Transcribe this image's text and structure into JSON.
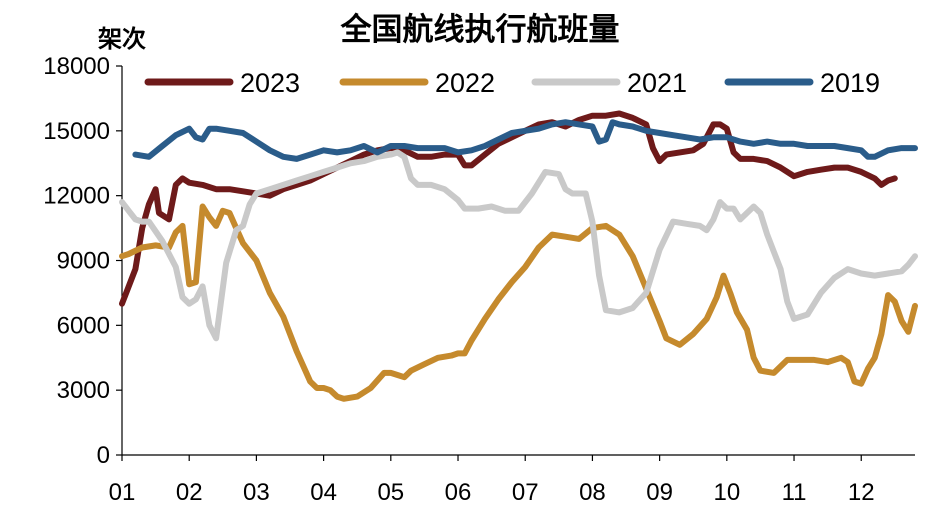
{
  "chart_data": {
    "type": "line",
    "title": "全国航线执行航班量",
    "ylabel": "架次",
    "xlabel": "",
    "ylim": [
      0,
      18000
    ],
    "yticks": [
      "0",
      "3000",
      "6000",
      "9000",
      "12000",
      "15000",
      "18000"
    ],
    "xlim": [
      1,
      12.8
    ],
    "xticks": [
      "01",
      "02",
      "03",
      "04",
      "05",
      "06",
      "07",
      "08",
      "09",
      "10",
      "11",
      "12"
    ],
    "grid": false,
    "legend_position": "top",
    "series": [
      {
        "name": "2023",
        "color": "#6e1a1a",
        "points": [
          [
            1.0,
            7000
          ],
          [
            1.1,
            7800
          ],
          [
            1.2,
            8600
          ],
          [
            1.3,
            10500
          ],
          [
            1.4,
            11600
          ],
          [
            1.5,
            12300
          ],
          [
            1.55,
            11200
          ],
          [
            1.7,
            10900
          ],
          [
            1.8,
            12500
          ],
          [
            1.9,
            12800
          ],
          [
            2.0,
            12600
          ],
          [
            2.2,
            12500
          ],
          [
            2.4,
            12300
          ],
          [
            2.6,
            12300
          ],
          [
            2.8,
            12200
          ],
          [
            3.0,
            12100
          ],
          [
            3.2,
            12000
          ],
          [
            3.4,
            12300
          ],
          [
            3.6,
            12500
          ],
          [
            3.8,
            12700
          ],
          [
            4.0,
            13000
          ],
          [
            4.2,
            13300
          ],
          [
            4.4,
            13600
          ],
          [
            4.6,
            13900
          ],
          [
            4.8,
            14100
          ],
          [
            5.0,
            14200
          ],
          [
            5.2,
            14100
          ],
          [
            5.4,
            13800
          ],
          [
            5.6,
            13800
          ],
          [
            5.8,
            13900
          ],
          [
            6.0,
            13900
          ],
          [
            6.1,
            13400
          ],
          [
            6.2,
            13400
          ],
          [
            6.4,
            13900
          ],
          [
            6.6,
            14400
          ],
          [
            6.8,
            14700
          ],
          [
            7.0,
            15000
          ],
          [
            7.2,
            15300
          ],
          [
            7.4,
            15400
          ],
          [
            7.6,
            15200
          ],
          [
            7.8,
            15500
          ],
          [
            8.0,
            15700
          ],
          [
            8.2,
            15700
          ],
          [
            8.4,
            15800
          ],
          [
            8.6,
            15600
          ],
          [
            8.8,
            15300
          ],
          [
            8.9,
            14200
          ],
          [
            9.0,
            13600
          ],
          [
            9.1,
            13900
          ],
          [
            9.3,
            14000
          ],
          [
            9.5,
            14100
          ],
          [
            9.65,
            14400
          ],
          [
            9.8,
            15300
          ],
          [
            9.9,
            15300
          ],
          [
            10.0,
            15100
          ],
          [
            10.1,
            14000
          ],
          [
            10.2,
            13700
          ],
          [
            10.4,
            13700
          ],
          [
            10.6,
            13600
          ],
          [
            10.8,
            13300
          ],
          [
            11.0,
            12900
          ],
          [
            11.2,
            13100
          ],
          [
            11.4,
            13200
          ],
          [
            11.6,
            13300
          ],
          [
            11.8,
            13300
          ],
          [
            12.0,
            13100
          ],
          [
            12.2,
            12800
          ],
          [
            12.3,
            12500
          ],
          [
            12.4,
            12700
          ],
          [
            12.5,
            12800
          ]
        ]
      },
      {
        "name": "2022",
        "color": "#c58a2d",
        "points": [
          [
            1.0,
            9200
          ],
          [
            1.1,
            9300
          ],
          [
            1.3,
            9600
          ],
          [
            1.5,
            9700
          ],
          [
            1.7,
            9600
          ],
          [
            1.8,
            10300
          ],
          [
            1.9,
            10600
          ],
          [
            2.0,
            7900
          ],
          [
            2.1,
            8000
          ],
          [
            2.2,
            11500
          ],
          [
            2.3,
            11000
          ],
          [
            2.4,
            10600
          ],
          [
            2.5,
            11300
          ],
          [
            2.6,
            11200
          ],
          [
            2.7,
            10500
          ],
          [
            2.8,
            9800
          ],
          [
            3.0,
            9000
          ],
          [
            3.2,
            7500
          ],
          [
            3.4,
            6400
          ],
          [
            3.6,
            4800
          ],
          [
            3.8,
            3400
          ],
          [
            3.9,
            3100
          ],
          [
            4.0,
            3100
          ],
          [
            4.1,
            3000
          ],
          [
            4.2,
            2700
          ],
          [
            4.3,
            2600
          ],
          [
            4.5,
            2700
          ],
          [
            4.7,
            3100
          ],
          [
            4.9,
            3800
          ],
          [
            5.0,
            3800
          ],
          [
            5.1,
            3700
          ],
          [
            5.2,
            3600
          ],
          [
            5.3,
            3900
          ],
          [
            5.5,
            4200
          ],
          [
            5.7,
            4500
          ],
          [
            5.9,
            4600
          ],
          [
            6.0,
            4700
          ],
          [
            6.1,
            4700
          ],
          [
            6.2,
            5300
          ],
          [
            6.4,
            6300
          ],
          [
            6.6,
            7200
          ],
          [
            6.8,
            8000
          ],
          [
            7.0,
            8700
          ],
          [
            7.2,
            9600
          ],
          [
            7.4,
            10200
          ],
          [
            7.6,
            10100
          ],
          [
            7.8,
            10000
          ],
          [
            8.0,
            10500
          ],
          [
            8.2,
            10600
          ],
          [
            8.4,
            10200
          ],
          [
            8.6,
            9200
          ],
          [
            8.8,
            7700
          ],
          [
            9.0,
            6200
          ],
          [
            9.1,
            5400
          ],
          [
            9.3,
            5100
          ],
          [
            9.5,
            5600
          ],
          [
            9.7,
            6300
          ],
          [
            9.85,
            7300
          ],
          [
            9.95,
            8300
          ],
          [
            10.05,
            7500
          ],
          [
            10.15,
            6600
          ],
          [
            10.3,
            5800
          ],
          [
            10.4,
            4500
          ],
          [
            10.5,
            3900
          ],
          [
            10.7,
            3800
          ],
          [
            10.9,
            4400
          ],
          [
            11.1,
            4400
          ],
          [
            11.3,
            4400
          ],
          [
            11.5,
            4300
          ],
          [
            11.7,
            4500
          ],
          [
            11.8,
            4300
          ],
          [
            11.9,
            3400
          ],
          [
            12.0,
            3300
          ],
          [
            12.1,
            4000
          ],
          [
            12.2,
            4500
          ],
          [
            12.3,
            5600
          ],
          [
            12.4,
            7400
          ],
          [
            12.5,
            7100
          ],
          [
            12.6,
            6200
          ],
          [
            12.7,
            5700
          ],
          [
            12.8,
            6900
          ]
        ]
      },
      {
        "name": "2021",
        "color": "#c9c9c9",
        "points": [
          [
            1.0,
            11700
          ],
          [
            1.1,
            11300
          ],
          [
            1.2,
            10900
          ],
          [
            1.3,
            10800
          ],
          [
            1.4,
            10800
          ],
          [
            1.6,
            9900
          ],
          [
            1.8,
            8700
          ],
          [
            1.9,
            7300
          ],
          [
            2.0,
            7000
          ],
          [
            2.1,
            7200
          ],
          [
            2.2,
            7800
          ],
          [
            2.3,
            6000
          ],
          [
            2.4,
            5400
          ],
          [
            2.55,
            8900
          ],
          [
            2.7,
            10400
          ],
          [
            2.8,
            10600
          ],
          [
            2.9,
            11600
          ],
          [
            3.0,
            12100
          ],
          [
            3.2,
            12300
          ],
          [
            3.4,
            12500
          ],
          [
            3.6,
            12700
          ],
          [
            3.8,
            12900
          ],
          [
            4.0,
            13100
          ],
          [
            4.2,
            13300
          ],
          [
            4.4,
            13500
          ],
          [
            4.6,
            13600
          ],
          [
            4.8,
            13800
          ],
          [
            5.0,
            13900
          ],
          [
            5.1,
            14000
          ],
          [
            5.2,
            13800
          ],
          [
            5.3,
            12800
          ],
          [
            5.4,
            12500
          ],
          [
            5.6,
            12500
          ],
          [
            5.8,
            12300
          ],
          [
            6.0,
            11800
          ],
          [
            6.1,
            11400
          ],
          [
            6.3,
            11400
          ],
          [
            6.5,
            11500
          ],
          [
            6.7,
            11300
          ],
          [
            6.9,
            11300
          ],
          [
            7.1,
            12100
          ],
          [
            7.3,
            13100
          ],
          [
            7.5,
            13000
          ],
          [
            7.6,
            12300
          ],
          [
            7.7,
            12100
          ],
          [
            7.9,
            12100
          ],
          [
            8.0,
            10800
          ],
          [
            8.1,
            8300
          ],
          [
            8.2,
            6700
          ],
          [
            8.4,
            6600
          ],
          [
            8.6,
            6800
          ],
          [
            8.8,
            7500
          ],
          [
            9.0,
            9500
          ],
          [
            9.2,
            10800
          ],
          [
            9.4,
            10700
          ],
          [
            9.6,
            10600
          ],
          [
            9.7,
            10400
          ],
          [
            9.8,
            10900
          ],
          [
            9.9,
            11700
          ],
          [
            10.0,
            11400
          ],
          [
            10.1,
            11400
          ],
          [
            10.2,
            10900
          ],
          [
            10.4,
            11500
          ],
          [
            10.5,
            11200
          ],
          [
            10.6,
            10200
          ],
          [
            10.7,
            9400
          ],
          [
            10.8,
            8600
          ],
          [
            10.9,
            7100
          ],
          [
            11.0,
            6300
          ],
          [
            11.2,
            6500
          ],
          [
            11.4,
            7500
          ],
          [
            11.6,
            8200
          ],
          [
            11.8,
            8600
          ],
          [
            12.0,
            8400
          ],
          [
            12.2,
            8300
          ],
          [
            12.4,
            8400
          ],
          [
            12.6,
            8500
          ],
          [
            12.7,
            8800
          ],
          [
            12.8,
            9200
          ]
        ]
      },
      {
        "name": "2019",
        "color": "#2a5c8a",
        "points": [
          [
            1.2,
            13900
          ],
          [
            1.4,
            13800
          ],
          [
            1.6,
            14300
          ],
          [
            1.8,
            14800
          ],
          [
            2.0,
            15100
          ],
          [
            2.1,
            14700
          ],
          [
            2.2,
            14600
          ],
          [
            2.3,
            15100
          ],
          [
            2.4,
            15100
          ],
          [
            2.6,
            15000
          ],
          [
            2.8,
            14900
          ],
          [
            3.0,
            14500
          ],
          [
            3.2,
            14100
          ],
          [
            3.4,
            13800
          ],
          [
            3.6,
            13700
          ],
          [
            3.8,
            13900
          ],
          [
            4.0,
            14100
          ],
          [
            4.2,
            14000
          ],
          [
            4.4,
            14100
          ],
          [
            4.6,
            14300
          ],
          [
            4.8,
            14000
          ],
          [
            5.0,
            14300
          ],
          [
            5.2,
            14300
          ],
          [
            5.4,
            14200
          ],
          [
            5.6,
            14200
          ],
          [
            5.8,
            14200
          ],
          [
            6.0,
            14000
          ],
          [
            6.2,
            14100
          ],
          [
            6.4,
            14300
          ],
          [
            6.6,
            14600
          ],
          [
            6.8,
            14900
          ],
          [
            7.0,
            15000
          ],
          [
            7.2,
            15100
          ],
          [
            7.4,
            15300
          ],
          [
            7.6,
            15400
          ],
          [
            7.8,
            15300
          ],
          [
            8.0,
            15200
          ],
          [
            8.1,
            14500
          ],
          [
            8.2,
            14600
          ],
          [
            8.3,
            15400
          ],
          [
            8.4,
            15300
          ],
          [
            8.6,
            15200
          ],
          [
            8.8,
            15000
          ],
          [
            9.0,
            14900
          ],
          [
            9.2,
            14800
          ],
          [
            9.4,
            14700
          ],
          [
            9.6,
            14600
          ],
          [
            9.8,
            14700
          ],
          [
            10.0,
            14700
          ],
          [
            10.2,
            14500
          ],
          [
            10.4,
            14400
          ],
          [
            10.6,
            14500
          ],
          [
            10.8,
            14400
          ],
          [
            11.0,
            14400
          ],
          [
            11.2,
            14300
          ],
          [
            11.4,
            14300
          ],
          [
            11.6,
            14300
          ],
          [
            11.8,
            14200
          ],
          [
            12.0,
            14100
          ],
          [
            12.1,
            13800
          ],
          [
            12.2,
            13800
          ],
          [
            12.4,
            14100
          ],
          [
            12.6,
            14200
          ],
          [
            12.8,
            14200
          ]
        ]
      }
    ]
  }
}
